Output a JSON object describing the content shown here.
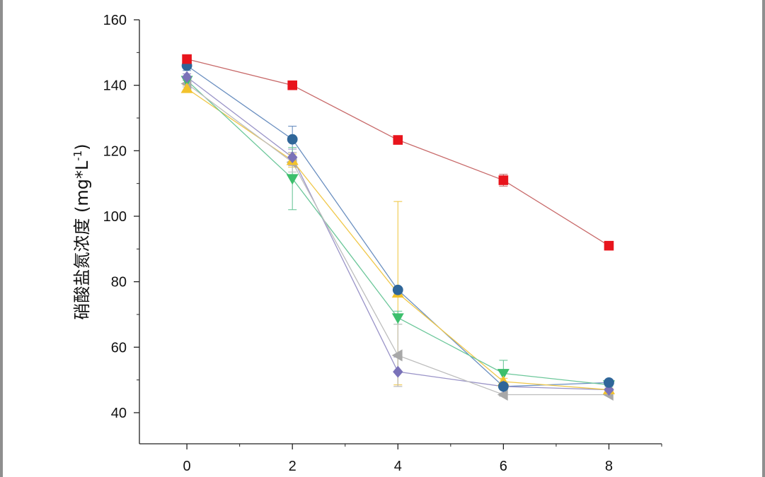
{
  "chart_data": {
    "type": "line",
    "title": "",
    "xlabel": "",
    "ylabel": "硝酸盐氮浓度 (mg*L",
    "ylabel_superscript": "-1",
    "ylabel_suffix": ")",
    "xlim": [
      -0.9,
      9.0
    ],
    "ylim": [
      30.5,
      160
    ],
    "x_ticks": [
      0,
      2,
      4,
      6,
      8
    ],
    "y_ticks": [
      40,
      60,
      80,
      100,
      120,
      140,
      160
    ],
    "grid": false,
    "legend": "none",
    "x": [
      0,
      2,
      4,
      6,
      8
    ],
    "series": [
      {
        "marker": "square",
        "color": "#e8141c",
        "line_color": "#c86a6a",
        "values": [
          148,
          140,
          123.3,
          111,
          91
        ],
        "errors": [
          0.8,
          1.0,
          0.5,
          1.8,
          0.3
        ]
      },
      {
        "marker": "circle",
        "color": "#2f6699",
        "line_color": "#6a8fc0",
        "values": [
          146,
          123.5,
          77.5,
          48,
          49.2
        ],
        "errors": [
          1.5,
          4.0,
          0,
          0.5,
          0.4
        ]
      },
      {
        "marker": "diamond",
        "color": "#7a72b8",
        "line_color": "#9a94c8",
        "values": [
          142.5,
          118,
          52.5,
          48,
          47
        ],
        "errors": [
          1.0,
          2.5,
          4.5,
          0.5,
          0.4
        ]
      },
      {
        "marker": "triangle-up",
        "color": "#f2c22c",
        "line_color": "#f0c84a",
        "values": [
          139,
          117,
          76.5,
          49.5,
          47
        ],
        "errors": [
          1.0,
          2.0,
          28.0,
          1.0,
          0.5
        ]
      },
      {
        "marker": "triangle-down",
        "color": "#3cbf6c",
        "line_color": "#6cc79a",
        "values": [
          141.5,
          111.5,
          69,
          52,
          48.5
        ],
        "errors": [
          1.0,
          9.5,
          2.0,
          4.0,
          0.5
        ]
      },
      {
        "marker": "triangle-left",
        "color": "#a8a8a8",
        "line_color": "#bdbdbd",
        "values": [
          140.5,
          116.5,
          57.5,
          45.5,
          45.5
        ],
        "errors": [
          1.0,
          3.0,
          9.5,
          0.5,
          0.3
        ]
      }
    ]
  }
}
